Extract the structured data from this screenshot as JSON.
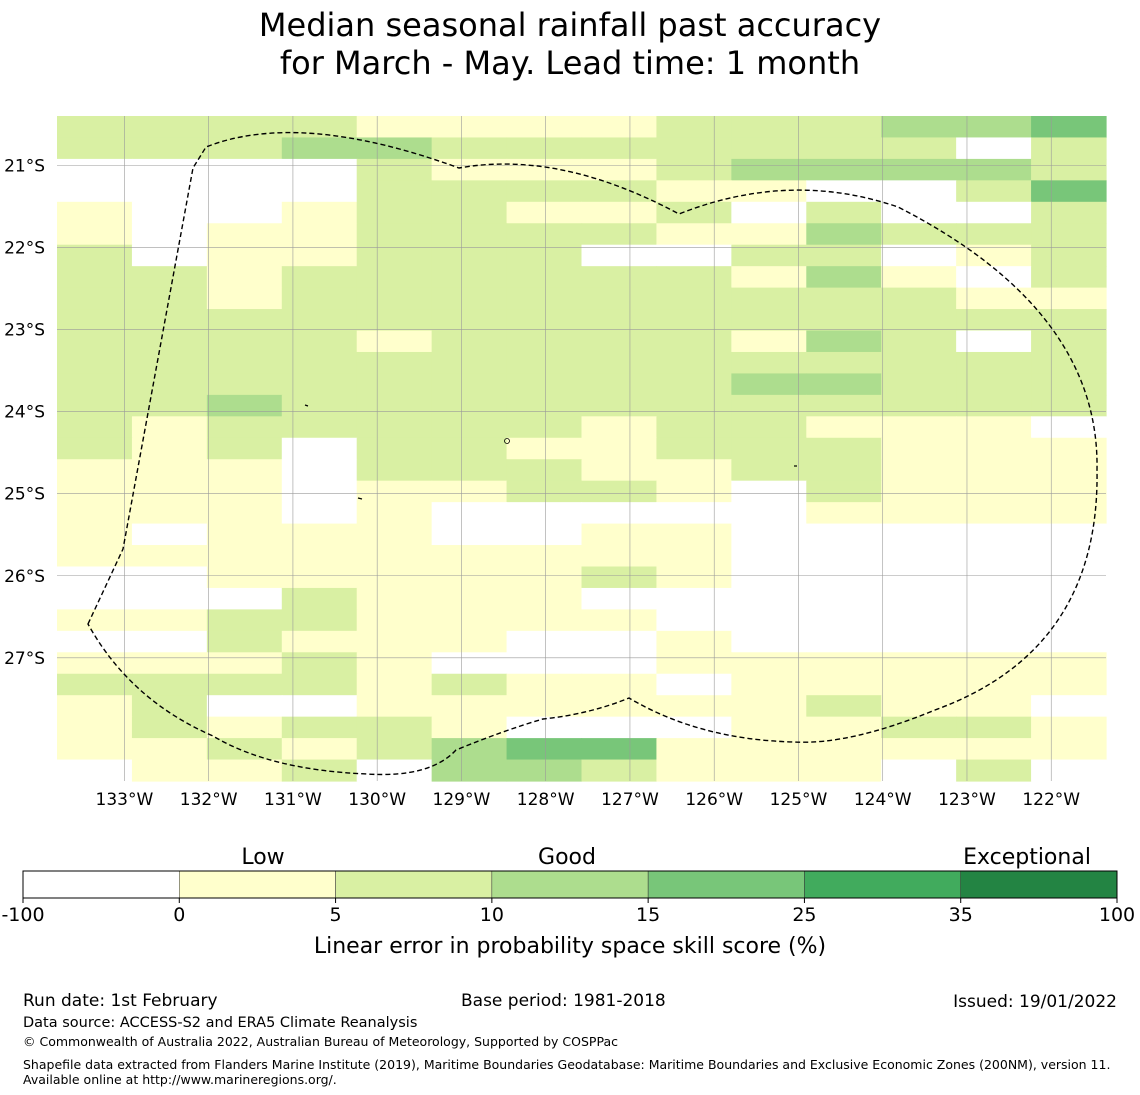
{
  "title": {
    "line1": "Median seasonal rainfall past accuracy",
    "line2": "for March - May. Lead time: 1 month"
  },
  "map": {
    "lon_range": [
      -133.8,
      -121.35
    ],
    "lat_range": [
      -28.5,
      -20.4
    ],
    "lon_labels": [
      "133°W",
      "132°W",
      "131°W",
      "130°W",
      "129°W",
      "128°W",
      "127°W",
      "126°W",
      "125°W",
      "124°W",
      "123°W",
      "122°W"
    ],
    "lat_labels": [
      "21°S",
      "22°S",
      "23°S",
      "24°S",
      "25°S",
      "26°S",
      "27°S"
    ],
    "legend_colors": [
      "#ffffff",
      "#ffffcc",
      "#d9f0a3",
      "#addd8e",
      "#78c679",
      "#41ab5d",
      "#238443"
    ],
    "category_rows": [
      "22221111222334",
      "22233222222202",
      "00002111233332",
      "00002222110024",
      "10012211202002",
      "10112222113222",
      "20112220022012",
      "22122222213102",
      "22122222222211",
      "22222222222222",
      "22221222213202",
      "22222222222222",
      "22222222233222",
      "22322222222222",
      "21222221221110",
      "21202211222111",
      "11102221122111",
      "11101122102111",
      "11101000001111",
      "10111001100000",
      "11111111100000",
      "00111112100000",
      "00021110000000",
      "11221111000000",
      "00211100100000",
      "11121000111111",
      "22221211011111",
      "12001111112110",
      "12122100011221",
      "11212344111111",
      "01120332111020"
    ]
  },
  "legend": {
    "category_labels": [
      "Low",
      "Good",
      "Exceptional"
    ],
    "tick_labels": [
      "-100",
      "0",
      "5",
      "10",
      "15",
      "25",
      "35",
      "100"
    ],
    "title": "Linear error in probability space skill score (%)"
  },
  "footer": {
    "run_date": "Run date: 1st February",
    "base_period": "Base period: 1981-2018",
    "issued": "Issued: 19/01/2022",
    "data_source": "Data source: ACCESS-S2 and ERA5 Climate Reanalysis",
    "copyright": "© Commonwealth of Australia 2022, Australian Bureau of Meteorology, Supported by COSPPac",
    "shapefile_note": "Shapefile data extracted from Flanders Marine Institute (2019), Maritime Boundaries Geodatabase: Maritime Boundaries and Exclusive Economic Zones (200NM), version 11. Available online at http://www.marineregions.org/."
  }
}
